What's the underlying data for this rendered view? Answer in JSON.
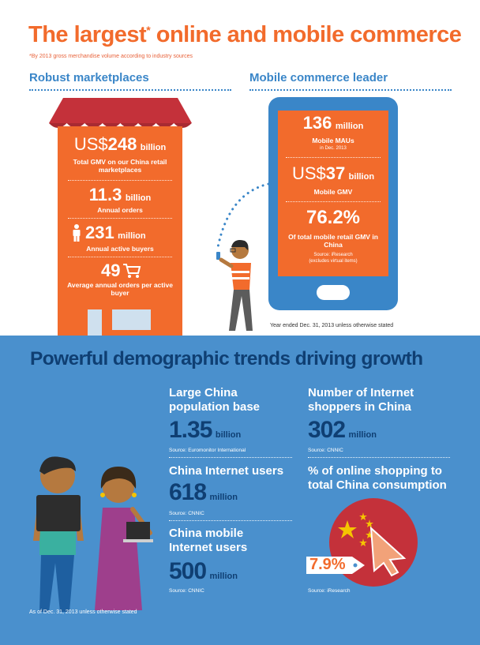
{
  "header": {
    "title": "The largest",
    "title_mark": "*",
    "title_rest": " online and mobile commerce",
    "footnote": "*By 2013 gross merchandise volume according to industry sources"
  },
  "marketplaces": {
    "heading": "Robust marketplaces",
    "gmv_prefix": "US$",
    "gmv_value": "248",
    "gmv_unit": "billion",
    "gmv_label": "Total GMV on our China retail marketplaces",
    "orders_value": "11.3",
    "orders_unit": "billion",
    "orders_label": "Annual orders",
    "buyers_value": "231",
    "buyers_unit": "million",
    "buyers_label": "Annual active buyers",
    "avg_value": "49",
    "avg_label": "Average annual orders per active buyer"
  },
  "mobile": {
    "heading": "Mobile commerce leader",
    "maus_value": "136",
    "maus_unit": "million",
    "maus_label": "Mobile MAUs",
    "maus_sub": "in Dec. 2013",
    "gmv_prefix": "US$",
    "gmv_value": "37",
    "gmv_unit": "billion",
    "gmv_label": "Mobile GMV",
    "share_value": "76.2%",
    "share_label": "Of total mobile retail GMV in China",
    "share_source": "Source: iResearch",
    "share_note": "(excludes virtual items)",
    "footnote": "Year ended Dec. 31, 2013 unless otherwise stated"
  },
  "demographics": {
    "heading": "Powerful demographic trends driving growth",
    "population_head": "Large China population base",
    "population_value": "1.35",
    "population_unit": "billion",
    "population_src": "Source: Euromonitor International",
    "internet_head": "China Internet users",
    "internet_value": "618",
    "internet_unit": "million",
    "internet_src": "Source: CNNIC",
    "mobile_head": "China mobile Internet users",
    "mobile_value": "500",
    "mobile_unit": "million",
    "mobile_src": "Source: CNNIC",
    "shoppers_head": "Number of Internet shoppers in China",
    "shoppers_value": "302",
    "shoppers_unit": "million",
    "shoppers_src": "Source: CNNIC",
    "share_head": "% of online shopping to total China consumption",
    "share_value": "7.9%",
    "share_src": "Source: iResearch",
    "footnote": "As of Dec. 31, 2013 unless otherwise stated"
  },
  "icons": [
    "person-icon",
    "cart-icon",
    "phone-icon",
    "china-flag-icon",
    "price-tag-icon",
    "storefront-icon"
  ],
  "colors": {
    "orange": "#f26b2c",
    "blue": "#3a86c8",
    "dark_blue": "#0f3f73",
    "bg_blue": "#4a90cd",
    "awning_red": "#c4313a"
  }
}
